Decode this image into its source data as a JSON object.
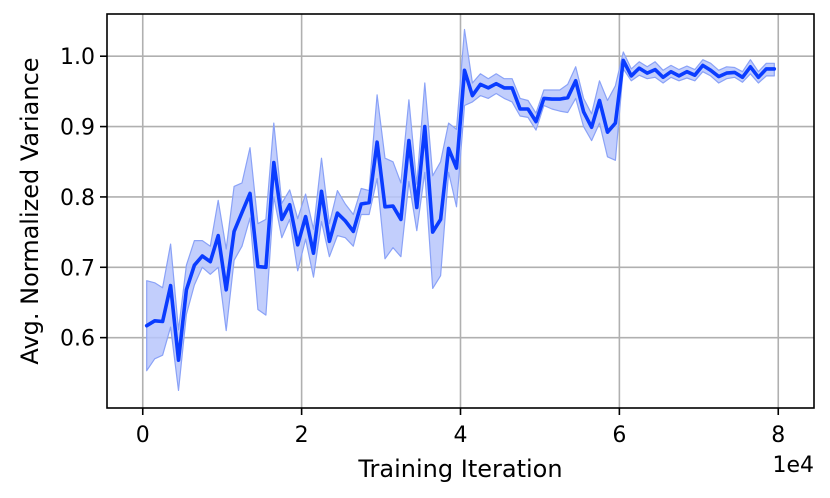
{
  "chart_data": {
    "type": "line",
    "title": "",
    "xlabel": "Training Iteration",
    "ylabel": "Avg. Normalized Variance",
    "x_offset_label": "1e4",
    "xlim": [
      -0.45,
      8.45
    ],
    "ylim": [
      0.5,
      1.06
    ],
    "xticks": [
      0,
      2,
      4,
      6,
      8
    ],
    "xtick_labels": [
      "0",
      "2",
      "4",
      "6",
      "8"
    ],
    "yticks": [
      0.6,
      0.7,
      0.8,
      0.9,
      1.0
    ],
    "ytick_labels": [
      "0.6",
      "0.7",
      "0.8",
      "0.9",
      "1.0"
    ],
    "grid": true,
    "colors": {
      "line": "#0a3cff",
      "band": "#b7c6fb",
      "band_edge": "#8aa2f7",
      "grid": "#b0b0b0",
      "axes": "#000000"
    },
    "series": [
      {
        "x": [
          0.05,
          0.15,
          0.25,
          0.35,
          0.45,
          0.55,
          0.65,
          0.75,
          0.85,
          0.95,
          1.05,
          1.15,
          1.25,
          1.35,
          1.45,
          1.55,
          1.65,
          1.75,
          1.85,
          1.95,
          2.05,
          2.15,
          2.25,
          2.35,
          2.45,
          2.55,
          2.65,
          2.75,
          2.85,
          2.95,
          3.05,
          3.15,
          3.25,
          3.35,
          3.45,
          3.55,
          3.65,
          3.75,
          3.85,
          3.95,
          4.05,
          4.15,
          4.25,
          4.35,
          4.45,
          4.55,
          4.65,
          4.75,
          4.85,
          4.95,
          5.05,
          5.15,
          5.25,
          5.35,
          5.45,
          5.55,
          5.65,
          5.75,
          5.85,
          5.95,
          6.05,
          6.15,
          6.25,
          6.35,
          6.45,
          6.55,
          6.65,
          6.75,
          6.85,
          6.95,
          7.05,
          7.15,
          7.25,
          7.35,
          7.45,
          7.55,
          7.65,
          7.75,
          7.85,
          7.95
        ],
        "y": [
          0.617,
          0.624,
          0.623,
          0.674,
          0.568,
          0.668,
          0.703,
          0.716,
          0.708,
          0.745,
          0.668,
          0.751,
          0.778,
          0.805,
          0.701,
          0.7,
          0.849,
          0.768,
          0.789,
          0.732,
          0.772,
          0.72,
          0.808,
          0.737,
          0.777,
          0.766,
          0.751,
          0.79,
          0.792,
          0.878,
          0.786,
          0.787,
          0.768,
          0.88,
          0.785,
          0.9,
          0.75,
          0.768,
          0.869,
          0.841,
          0.98,
          0.944,
          0.96,
          0.955,
          0.961,
          0.955,
          0.955,
          0.925,
          0.925,
          0.907,
          0.94,
          0.939,
          0.939,
          0.941,
          0.965,
          0.921,
          0.899,
          0.937,
          0.892,
          0.905,
          0.994,
          0.972,
          0.983,
          0.976,
          0.981,
          0.97,
          0.978,
          0.972,
          0.978,
          0.973,
          0.987,
          0.98,
          0.971,
          0.976,
          0.977,
          0.97,
          0.985,
          0.97,
          0.982,
          0.982
        ],
        "lower": [
          0.553,
          0.57,
          0.575,
          0.615,
          0.525,
          0.633,
          0.675,
          0.7,
          0.69,
          0.7,
          0.61,
          0.71,
          0.73,
          0.77,
          0.64,
          0.632,
          0.8,
          0.742,
          0.768,
          0.695,
          0.74,
          0.686,
          0.765,
          0.715,
          0.745,
          0.742,
          0.73,
          0.775,
          0.775,
          0.826,
          0.712,
          0.728,
          0.715,
          0.822,
          0.752,
          0.835,
          0.67,
          0.688,
          0.835,
          0.786,
          0.93,
          0.935,
          0.944,
          0.94,
          0.947,
          0.94,
          0.935,
          0.915,
          0.913,
          0.895,
          0.93,
          0.925,
          0.922,
          0.92,
          0.94,
          0.9,
          0.88,
          0.905,
          0.857,
          0.852,
          0.982,
          0.965,
          0.973,
          0.968,
          0.97,
          0.962,
          0.97,
          0.965,
          0.969,
          0.965,
          0.978,
          0.972,
          0.962,
          0.968,
          0.97,
          0.963,
          0.975,
          0.962,
          0.972,
          0.972
        ],
        "upper": [
          0.681,
          0.678,
          0.671,
          0.733,
          0.611,
          0.703,
          0.738,
          0.738,
          0.73,
          0.795,
          0.726,
          0.815,
          0.82,
          0.87,
          0.762,
          0.768,
          0.905,
          0.791,
          0.81,
          0.769,
          0.804,
          0.754,
          0.855,
          0.762,
          0.809,
          0.79,
          0.775,
          0.812,
          0.809,
          0.945,
          0.855,
          0.85,
          0.82,
          0.938,
          0.818,
          0.962,
          0.83,
          0.85,
          0.905,
          0.896,
          1.038,
          0.962,
          0.975,
          0.968,
          0.975,
          0.968,
          0.968,
          0.94,
          0.937,
          0.919,
          0.952,
          0.952,
          0.952,
          0.96,
          0.985,
          0.94,
          0.918,
          0.965,
          0.937,
          0.958,
          1.006,
          0.982,
          0.992,
          0.985,
          0.992,
          0.98,
          0.987,
          0.981,
          0.986,
          0.981,
          0.995,
          0.99,
          0.98,
          0.985,
          0.984,
          0.978,
          0.995,
          0.978,
          0.99,
          0.99
        ]
      }
    ]
  }
}
